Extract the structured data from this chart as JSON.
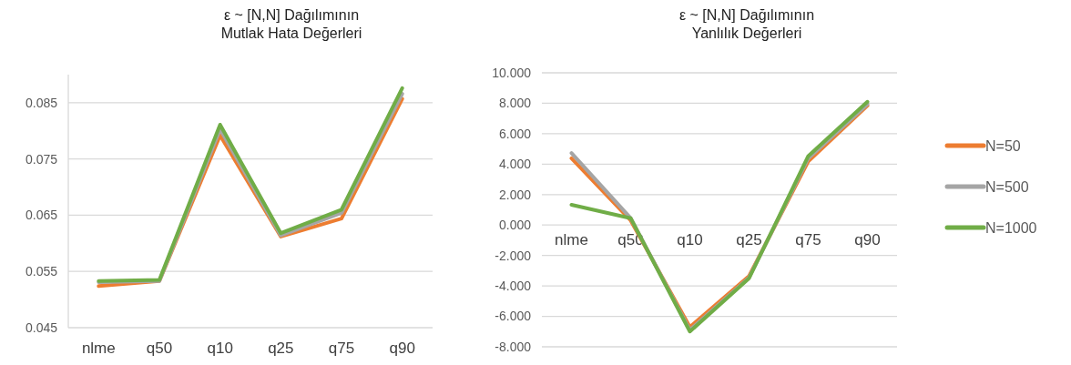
{
  "chart_data": [
    {
      "type": "line",
      "title": "ε ~ [N,N] Dağılımının Mutlak Hata Değerleri",
      "categories": [
        "nlme",
        "q50",
        "q10",
        "q25",
        "q75",
        "q90"
      ],
      "series": [
        {
          "color": "#ed7d31",
          "values": [
            0.0524,
            0.0533,
            0.0792,
            0.0612,
            0.0644,
            0.0857
          ]
        },
        {
          "color": "#a5a5a5",
          "values": [
            0.0531,
            0.0533,
            0.0803,
            0.0614,
            0.0654,
            0.0866
          ]
        },
        {
          "color": "#70ad47",
          "values": [
            0.0533,
            0.0535,
            0.0811,
            0.0618,
            0.066,
            0.0876
          ]
        }
      ],
      "ylim": [
        0.045,
        0.09
      ],
      "yticks": [
        0.045,
        0.055,
        0.065,
        0.075,
        0.085
      ],
      "grid": "y"
    },
    {
      "type": "line",
      "title": "ε ~ [N,N] Dağılımının Yanlılık Değerleri",
      "categories": [
        "nlme",
        "q50",
        "q10",
        "q25",
        "q75",
        "q90"
      ],
      "series": [
        {
          "name": "N=50",
          "color": "#ed7d31",
          "values": [
            4.38,
            0.3,
            -6.7,
            -3.35,
            4.18,
            7.84
          ]
        },
        {
          "name": "N=500",
          "color": "#a5a5a5",
          "values": [
            4.73,
            0.45,
            -6.9,
            -3.45,
            4.38,
            7.94
          ]
        },
        {
          "name": "N=1000",
          "color": "#70ad47",
          "values": [
            1.33,
            0.45,
            -7.0,
            -3.5,
            4.53,
            8.1
          ]
        }
      ],
      "ylim": [
        -8,
        10
      ],
      "yticks": [
        {
          "value": -8,
          "label": "-8.000"
        },
        {
          "value": -6,
          "label": "-6.000"
        },
        {
          "value": -4,
          "label": "-4.000"
        },
        {
          "value": -2,
          "label": "-2.000"
        },
        {
          "value": 0,
          "label": "0.000"
        },
        {
          "value": 2,
          "label": "2.000"
        },
        {
          "value": 4,
          "label": "4.000"
        },
        {
          "value": 6,
          "label": "6.000"
        },
        {
          "value": 8,
          "label": "8.000"
        },
        {
          "value": 10,
          "label": "10.000"
        }
      ],
      "grid": "y",
      "legend": "right"
    }
  ]
}
